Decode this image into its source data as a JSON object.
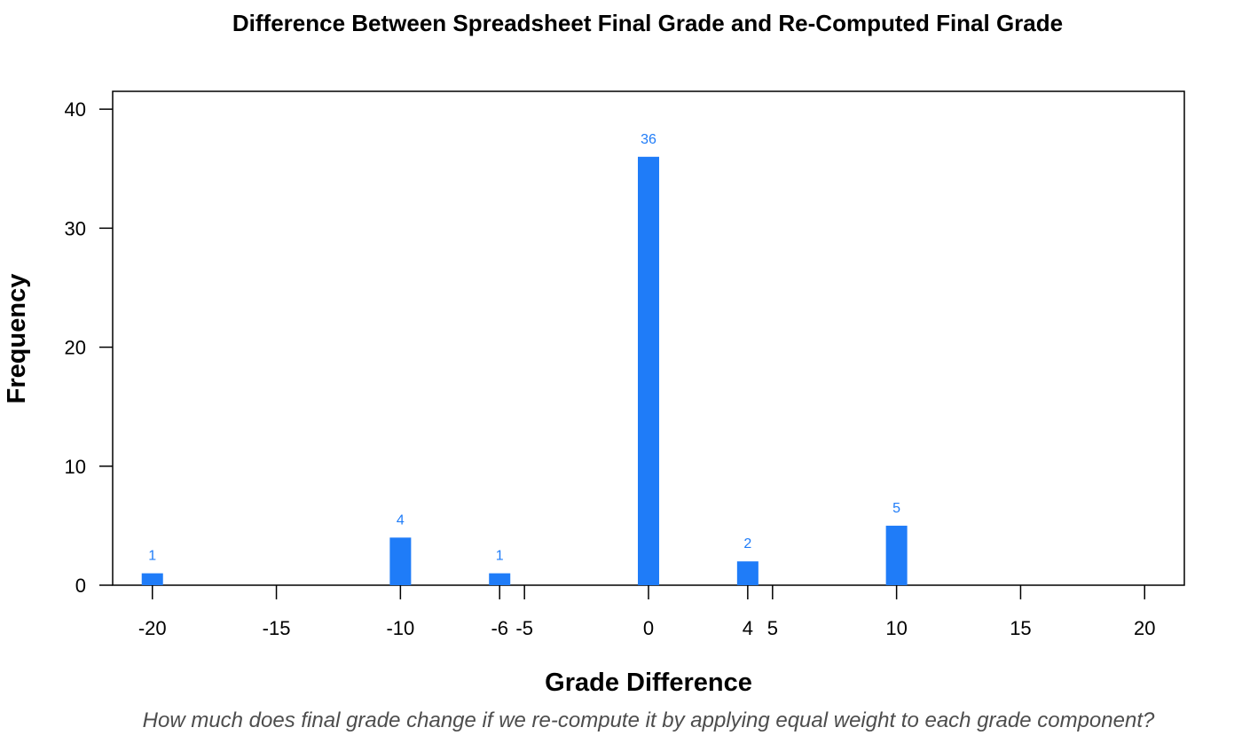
{
  "chart_data": {
    "type": "bar",
    "title": "Difference Between Spreadsheet Final Grade and Re-Computed Final Grade",
    "xlabel": "Grade Difference",
    "ylabel": "Frequency",
    "caption": "How much does final grade change if we re-compute it by applying equal weight to each grade component?",
    "x": [
      -20,
      -10,
      -6,
      0,
      4,
      10
    ],
    "values": [
      1,
      4,
      1,
      36,
      2,
      5
    ],
    "data_labels": [
      "1",
      "4",
      "1",
      "36",
      "2",
      "5"
    ],
    "xlim": [
      -21.6,
      21.6
    ],
    "ylim": [
      0,
      41.5
    ],
    "x_ticks": [
      -20,
      -15,
      -10,
      -6,
      -5,
      0,
      4,
      5,
      10,
      15,
      20
    ],
    "x_tick_labels": [
      "-20",
      "-15",
      "-10",
      "-6",
      "-5",
      "0",
      "4",
      "5",
      "10",
      "15",
      "20"
    ],
    "y_ticks": [
      0,
      10,
      20,
      30,
      40
    ],
    "y_tick_labels": [
      "0",
      "10",
      "20",
      "30",
      "40"
    ],
    "bar_color": "#1f7cf8",
    "label_color": "#1f7cf8",
    "grid": false,
    "legend": "none"
  }
}
